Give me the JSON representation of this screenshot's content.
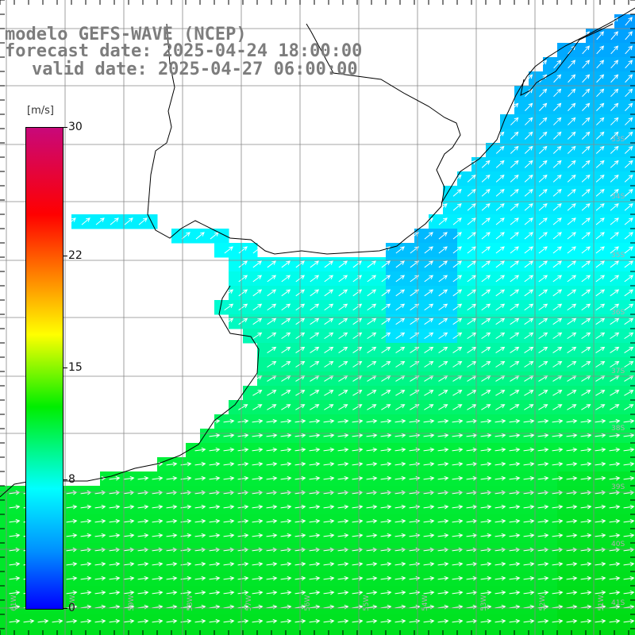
{
  "title": {
    "line1": "modelo GEFS-WAVE (NCEP)",
    "line2": "forecast date: 2025-04-24 18:00:00",
    "line3": "valid date: 2025-04-27 06:00:00"
  },
  "colorbar": {
    "unit": "[m/s]",
    "range": [
      0,
      30
    ],
    "labels": [
      "30",
      "22",
      "15",
      "8",
      "0"
    ],
    "label_values": [
      30,
      22,
      15,
      8,
      0
    ]
  },
  "latitude_labels": [
    "33S",
    "34S",
    "35S",
    "36S",
    "37S",
    "38S",
    "39S",
    "40S",
    "41S"
  ],
  "longitude_labels": [
    "61W",
    "60W",
    "59W",
    "58W",
    "57W",
    "56W",
    "55W",
    "54W",
    "53W",
    "52W",
    "51W"
  ],
  "colors": {
    "land": "#ffffff",
    "coast": "#000000",
    "grid": "#888888",
    "arrow": "#ffffff",
    "title": "#7d7d7d"
  }
}
